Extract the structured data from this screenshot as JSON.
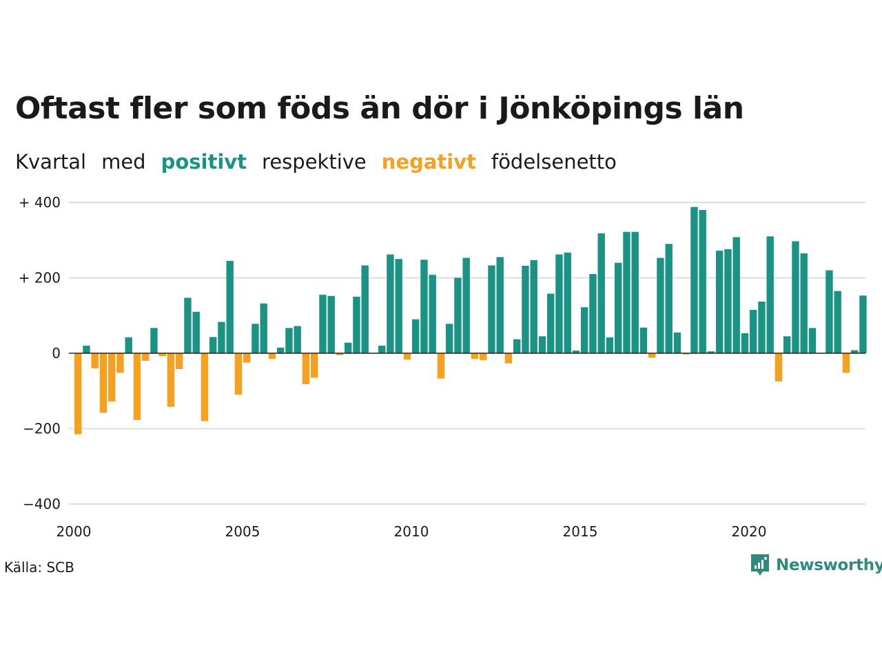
{
  "title": "Oftast fler som föds än dör i Jönköpings län",
  "subtitle": {
    "part1": "Kvartal",
    "part2": "med",
    "positive": "positivt",
    "part3": "respektive",
    "negative": "negativt",
    "part4": "födelsenetto"
  },
  "colors": {
    "positive": "#1a9385",
    "negative": "#f5a01e",
    "grid": "#dddddd",
    "text": "#1a1a1a",
    "logo": "#2f8a7e"
  },
  "source": "Källa: SCB",
  "logo": {
    "text": "Newsworthy",
    "icon": "bar-chart-bubble-icon"
  },
  "chart_data": {
    "type": "bar",
    "xlabel": "",
    "ylabel": "",
    "ylim": [
      -400,
      400
    ],
    "xlim": [
      2000,
      2023.5
    ],
    "yticks": [
      400,
      200,
      0,
      -200,
      -400
    ],
    "ytick_labels": [
      "+ 400",
      "+ 200",
      "0",
      "−200",
      "−400"
    ],
    "xticks": [
      2000,
      2005,
      2010,
      2015,
      2020
    ],
    "xtick_labels": [
      "2000",
      "2005",
      "2010",
      "2015",
      "2020"
    ],
    "start_year": 2000,
    "start_quarter": 1,
    "values": [
      -215,
      20,
      -40,
      -158,
      -128,
      -52,
      42,
      -177,
      -20,
      67,
      -8,
      -142,
      -42,
      147,
      110,
      -180,
      43,
      83,
      245,
      -110,
      -25,
      78,
      132,
      -15,
      15,
      67,
      72,
      -82,
      -65,
      155,
      152,
      -5,
      28,
      150,
      233,
      0,
      20,
      262,
      250,
      -17,
      90,
      248,
      208,
      -67,
      78,
      200,
      253,
      -15,
      -18,
      233,
      255,
      -27,
      37,
      232,
      247,
      45,
      158,
      262,
      267,
      7,
      122,
      210,
      318,
      42,
      240,
      322,
      322,
      68,
      -12,
      253,
      290,
      55,
      -3,
      388,
      380,
      5,
      272,
      276,
      308,
      53,
      115,
      137,
      310,
      -75,
      45,
      297,
      265,
      67,
      0,
      220,
      165,
      -52,
      8,
      153
    ]
  }
}
